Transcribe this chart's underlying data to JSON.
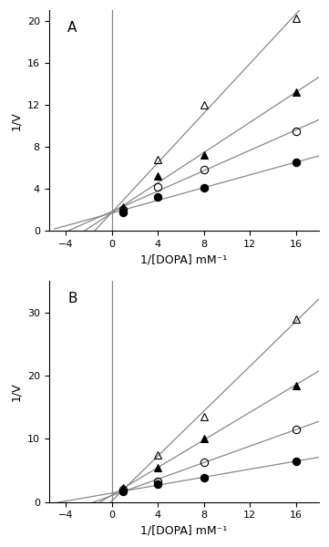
{
  "panel_A": {
    "label": "A",
    "xlim": [
      -5.5,
      18
    ],
    "ylim": [
      0,
      21
    ],
    "yticks": [
      0,
      4,
      8,
      12,
      16,
      20
    ],
    "xticks": [
      -4,
      0,
      4,
      8,
      12,
      16
    ],
    "series": [
      {
        "marker": "^",
        "filled": false,
        "color": "black",
        "x": [
          1,
          4,
          8,
          16
        ],
        "y": [
          2.3,
          6.8,
          12.0,
          20.2
        ]
      },
      {
        "marker": "^",
        "filled": true,
        "color": "black",
        "x": [
          1,
          4,
          8,
          16
        ],
        "y": [
          2.1,
          5.2,
          7.2,
          13.2
        ]
      },
      {
        "marker": "o",
        "filled": false,
        "color": "black",
        "x": [
          1,
          4,
          8,
          16
        ],
        "y": [
          2.0,
          4.2,
          5.8,
          9.5
        ]
      },
      {
        "marker": "o",
        "filled": true,
        "color": "black",
        "x": [
          1,
          4,
          8,
          16
        ],
        "y": [
          1.8,
          3.2,
          4.1,
          6.5
        ]
      }
    ],
    "convergence_x": -5.0,
    "convergence_y": 0.0,
    "vline_x": 0
  },
  "panel_B": {
    "label": "B",
    "xlim": [
      -5.5,
      18
    ],
    "ylim": [
      0,
      35
    ],
    "yticks": [
      0,
      10,
      20,
      30
    ],
    "xticks": [
      -4,
      0,
      4,
      8,
      12,
      16
    ],
    "series": [
      {
        "marker": "^",
        "filled": false,
        "color": "black",
        "x": [
          1,
          4,
          8,
          16
        ],
        "y": [
          2.3,
          7.5,
          13.5,
          29.0
        ]
      },
      {
        "marker": "^",
        "filled": true,
        "color": "black",
        "x": [
          1,
          4,
          8,
          16
        ],
        "y": [
          2.1,
          5.5,
          10.0,
          18.5
        ]
      },
      {
        "marker": "o",
        "filled": false,
        "color": "black",
        "x": [
          1,
          4,
          8,
          16
        ],
        "y": [
          1.9,
          3.3,
          6.3,
          11.5
        ]
      },
      {
        "marker": "o",
        "filled": true,
        "color": "black",
        "x": [
          1,
          4,
          8,
          16
        ],
        "y": [
          1.7,
          2.8,
          3.8,
          6.5
        ]
      }
    ],
    "convergence_x": -5.0,
    "convergence_y": 0.0,
    "vline_x": 0
  },
  "xlabel": "1/[DOPA] mM⁻¹",
  "ylabel": "1/V",
  "line_color": "#888888",
  "marker_size": 6,
  "linewidth": 0.9,
  "background_color": "white",
  "vline_color": "#888888",
  "vline_linewidth": 0.9
}
